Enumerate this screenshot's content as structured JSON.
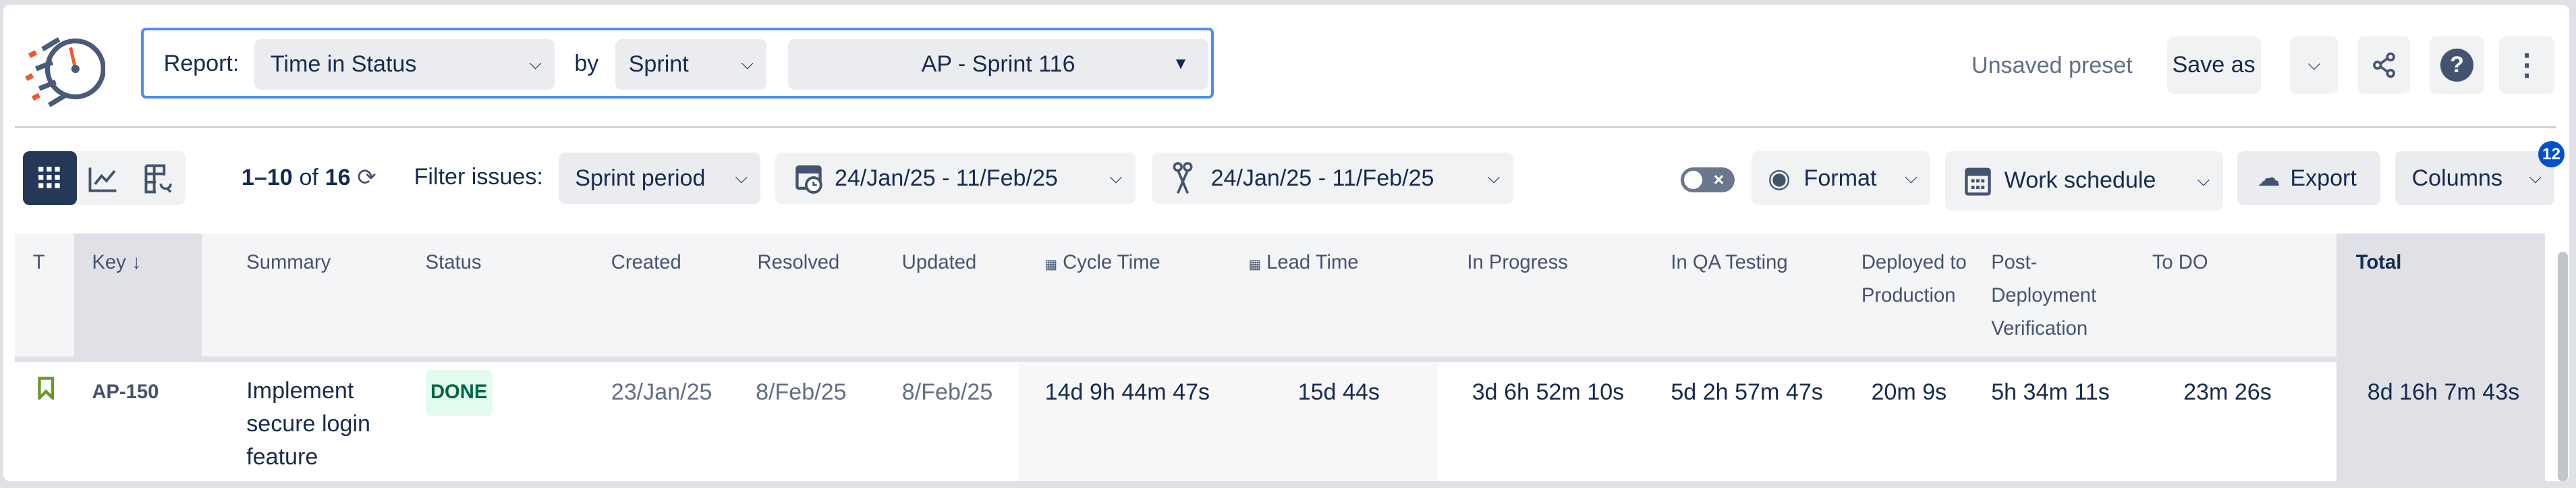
{
  "header": {
    "report_label": "Report:",
    "report_value": "Time in Status",
    "by_label": "by",
    "by_value": "Sprint",
    "sprint_value": "AP - Sprint 116",
    "preset_status": "Unsaved preset",
    "save_as_label": "Save as"
  },
  "toolbar": {
    "pagination": "1–10",
    "pagination_of": "of",
    "pagination_total": "16",
    "filter_label": "Filter issues:",
    "filter_value": "Sprint period",
    "date_range_1": "24/Jan/25 - 11/Feb/25",
    "date_range_2": "24/Jan/25 - 11/Feb/25",
    "format_label": "Format",
    "work_schedule_label": "Work schedule",
    "export_label": "Export",
    "columns_label": "Columns",
    "columns_badge": "12"
  },
  "table": {
    "headers": [
      "T",
      "Key",
      "Summary",
      "Status",
      "Created",
      "Resolved",
      "Updated",
      "Cycle Time",
      "Lead Time",
      "In Progress",
      "In QA Testing",
      "Deployed to Production",
      "Post-Deployment Verification",
      "To DO",
      "Total"
    ],
    "rows": [
      {
        "type": "story-icon",
        "key": "AP-150",
        "summary": "Implement secure login feature",
        "status": "DONE",
        "created": "23/Jan/25",
        "resolved": "8/Feb/25",
        "updated": "8/Feb/25",
        "cycle_time": "14d 9h 44m 47s",
        "lead_time": "15d 44s",
        "in_progress": "3d 6h 52m 10s",
        "in_qa_testing": "5d 2h 57m 47s",
        "deployed_to_production": "20m 9s",
        "post_deployment_verification": "5h 34m 11s",
        "to_do": "23m 26s",
        "total": "8d 16h 7m 43s"
      }
    ]
  },
  "colors": {
    "accent": "#4f8cf0",
    "dark": "#253858",
    "done_bg": "#e3fcef",
    "done_text": "#006644",
    "story": "#6a9a23",
    "badge": "#0052cc"
  }
}
